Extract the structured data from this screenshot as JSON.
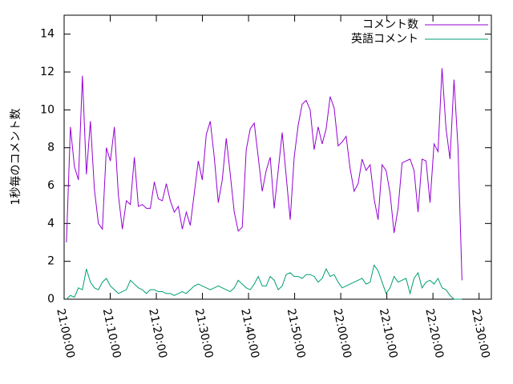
{
  "chart_data": {
    "type": "line",
    "ylabel": "1秒毎のコメント数",
    "xlim": [
      "21:00:00",
      "22:32:40"
    ],
    "ylim": [
      0,
      15
    ],
    "xticks": [
      "21:00:00",
      "21:10:00",
      "21:20:00",
      "21:30:00",
      "21:40:00",
      "21:50:00",
      "22:00:00",
      "22:10:00",
      "22:20:00",
      "22:30:00"
    ],
    "yticks": [
      0,
      2,
      4,
      6,
      8,
      10,
      12,
      14
    ],
    "legend": "upper right",
    "x": [
      "21:00:30",
      "21:01:22",
      "21:02:14",
      "21:03:06",
      "21:03:58",
      "21:04:50",
      "21:05:42",
      "21:06:34",
      "21:07:26",
      "21:08:18",
      "21:09:10",
      "21:10:02",
      "21:10:54",
      "21:11:46",
      "21:12:38",
      "21:13:30",
      "21:14:22",
      "21:15:14",
      "21:16:06",
      "21:16:58",
      "21:17:50",
      "21:18:42",
      "21:19:34",
      "21:20:26",
      "21:21:18",
      "21:22:10",
      "21:23:02",
      "21:23:54",
      "21:24:46",
      "21:25:38",
      "21:26:30",
      "21:27:22",
      "21:28:14",
      "21:29:06",
      "21:29:58",
      "21:30:50",
      "21:31:42",
      "21:32:34",
      "21:33:26",
      "21:34:18",
      "21:35:10",
      "21:36:02",
      "21:36:54",
      "21:37:46",
      "21:38:38",
      "21:39:30",
      "21:40:22",
      "21:41:14",
      "21:42:06",
      "21:42:58",
      "21:43:50",
      "21:44:42",
      "21:45:34",
      "21:46:26",
      "21:47:18",
      "21:48:10",
      "21:49:02",
      "21:49:54",
      "21:50:46",
      "21:51:38",
      "21:52:30",
      "21:53:22",
      "21:54:14",
      "21:55:06",
      "21:55:58",
      "21:56:50",
      "21:57:42",
      "21:58:34",
      "21:59:26",
      "22:00:18",
      "22:01:10",
      "22:02:02",
      "22:02:54",
      "22:03:46",
      "22:04:38",
      "22:05:30",
      "22:06:22",
      "22:07:14",
      "22:08:06",
      "22:08:58",
      "22:09:50",
      "22:10:42",
      "22:11:34",
      "22:12:26",
      "22:13:18",
      "22:14:10",
      "22:15:02",
      "22:15:54",
      "22:16:46",
      "22:17:38",
      "22:18:30",
      "22:19:22",
      "22:20:14",
      "22:21:06",
      "22:21:58",
      "22:22:50",
      "22:23:42",
      "22:24:34",
      "22:25:26",
      "22:26:18"
    ],
    "series": [
      {
        "name": "コメント数",
        "color": "#9400d3",
        "values": [
          3.0,
          9.1,
          7.0,
          6.3,
          11.8,
          6.6,
          9.4,
          5.8,
          4.0,
          3.7,
          8.0,
          7.3,
          9.1,
          5.5,
          3.7,
          5.2,
          5.0,
          7.5,
          4.9,
          5.0,
          4.8,
          4.8,
          6.2,
          5.3,
          5.2,
          6.1,
          5.2,
          4.6,
          4.9,
          3.7,
          4.6,
          3.9,
          5.6,
          7.3,
          6.3,
          8.7,
          9.4,
          7.5,
          5.1,
          6.3,
          8.5,
          6.6,
          4.6,
          3.6,
          3.8,
          7.9,
          9.0,
          9.3,
          7.5,
          5.7,
          6.8,
          7.5,
          4.8,
          6.8,
          8.8,
          6.5,
          4.2,
          7.5,
          9.2,
          10.3,
          10.5,
          10.0,
          7.9,
          9.1,
          8.2,
          9.0,
          10.7,
          10.1,
          8.1,
          8.3,
          8.6,
          6.9,
          5.7,
          6.1,
          7.4,
          6.8,
          7.1,
          5.3,
          4.2,
          7.1,
          6.8,
          5.6,
          3.5,
          4.8,
          7.2,
          7.3,
          7.4,
          6.8,
          4.6,
          7.4,
          7.3,
          5.1,
          8.2,
          7.8,
          12.2,
          9.0,
          7.4,
          11.6,
          8.0,
          1.0
        ]
      },
      {
        "name": "英語コメント",
        "color": "#009e73",
        "values": [
          0.0,
          0.2,
          0.1,
          0.6,
          0.5,
          1.6,
          0.9,
          0.6,
          0.5,
          0.9,
          1.1,
          0.7,
          0.5,
          0.3,
          0.4,
          0.5,
          1.0,
          0.8,
          0.6,
          0.5,
          0.3,
          0.5,
          0.5,
          0.4,
          0.4,
          0.3,
          0.3,
          0.2,
          0.3,
          0.4,
          0.3,
          0.5,
          0.7,
          0.8,
          0.7,
          0.6,
          0.5,
          0.6,
          0.7,
          0.6,
          0.5,
          0.4,
          0.6,
          1.0,
          0.8,
          0.6,
          0.5,
          0.8,
          1.2,
          0.7,
          0.7,
          1.2,
          1.0,
          0.5,
          0.7,
          1.3,
          1.4,
          1.2,
          1.2,
          1.1,
          1.3,
          1.3,
          1.2,
          0.9,
          1.1,
          1.6,
          1.2,
          1.3,
          0.9,
          0.6,
          0.7,
          0.8,
          0.9,
          1.0,
          1.1,
          0.8,
          0.9,
          1.8,
          1.5,
          0.9,
          0.3,
          0.6,
          1.2,
          0.9,
          1.0,
          1.1,
          0.3,
          1.1,
          1.4,
          0.6,
          0.9,
          1.0,
          0.8,
          1.1,
          0.6,
          0.5,
          0.2,
          0.0,
          0.0,
          0.0
        ]
      }
    ]
  }
}
